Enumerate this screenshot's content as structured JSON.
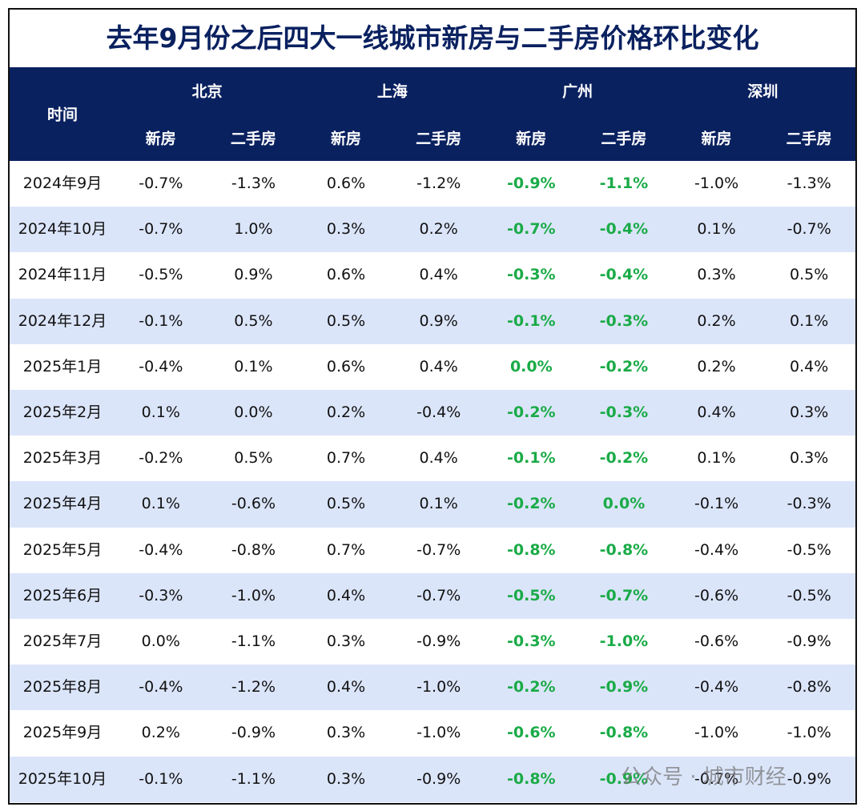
{
  "title": "去年9月份之后四大一线城市新房与二手房价格环比变化",
  "header": {
    "time": "时间",
    "cities": [
      "北京",
      "上海",
      "广州",
      "深圳"
    ],
    "subheaders": [
      "新房",
      "二手房"
    ]
  },
  "table": {
    "rows": [
      [
        "2024年9月",
        "-0.7%",
        "-1.3%",
        "0.6%",
        "-1.2%",
        "-0.9%",
        "-1.1%",
        "-1.0%",
        "-1.3%"
      ],
      [
        "2024年10月",
        "-0.7%",
        "1.0%",
        "0.3%",
        "0.2%",
        "-0.7%",
        "-0.4%",
        "0.1%",
        "-0.7%"
      ],
      [
        "2024年11月",
        "-0.5%",
        "0.9%",
        "0.6%",
        "0.4%",
        "-0.3%",
        "-0.4%",
        "0.3%",
        "0.5%"
      ],
      [
        "2024年12月",
        "-0.1%",
        "0.5%",
        "0.5%",
        "0.9%",
        "-0.1%",
        "-0.3%",
        "0.2%",
        "0.1%"
      ],
      [
        "2025年1月",
        "-0.4%",
        "0.1%",
        "0.6%",
        "0.4%",
        "0.0%",
        "-0.2%",
        "0.2%",
        "0.4%"
      ],
      [
        "2025年2月",
        "0.1%",
        "0.0%",
        "0.2%",
        "-0.4%",
        "-0.2%",
        "-0.3%",
        "0.4%",
        "0.3%"
      ],
      [
        "2025年3月",
        "-0.2%",
        "0.5%",
        "0.7%",
        "0.4%",
        "-0.1%",
        "-0.2%",
        "0.1%",
        "0.3%"
      ],
      [
        "2025年4月",
        "0.1%",
        "-0.6%",
        "0.5%",
        "0.1%",
        "-0.2%",
        "0.0%",
        "-0.1%",
        "-0.3%"
      ],
      [
        "2025年5月",
        "-0.4%",
        "-0.8%",
        "0.7%",
        "-0.7%",
        "-0.8%",
        "-0.8%",
        "-0.4%",
        "-0.5%"
      ],
      [
        "2025年6月",
        "-0.3%",
        "-1.0%",
        "0.4%",
        "-0.7%",
        "-0.5%",
        "-0.7%",
        "-0.6%",
        "-0.5%"
      ],
      [
        "2025年7月",
        "0.0%",
        "-1.1%",
        "0.3%",
        "-0.9%",
        "-0.3%",
        "-1.0%",
        "-0.6%",
        "-0.9%"
      ],
      [
        "2025年8月",
        "-0.4%",
        "-1.2%",
        "0.4%",
        "-1.0%",
        "-0.2%",
        "-0.9%",
        "-0.4%",
        "-0.8%"
      ],
      [
        "2025年9月",
        "0.2%",
        "-0.9%",
        "0.3%",
        "-1.0%",
        "-0.6%",
        "-0.8%",
        "-1.0%",
        "-1.0%"
      ],
      [
        "2025年10月",
        "-0.1%",
        "-1.1%",
        "0.3%",
        "-0.9%",
        "-0.8%",
        "-0.9%",
        "-0.7%",
        "-0.9%"
      ]
    ]
  },
  "watermark": "公众号 · 城市财经"
}
